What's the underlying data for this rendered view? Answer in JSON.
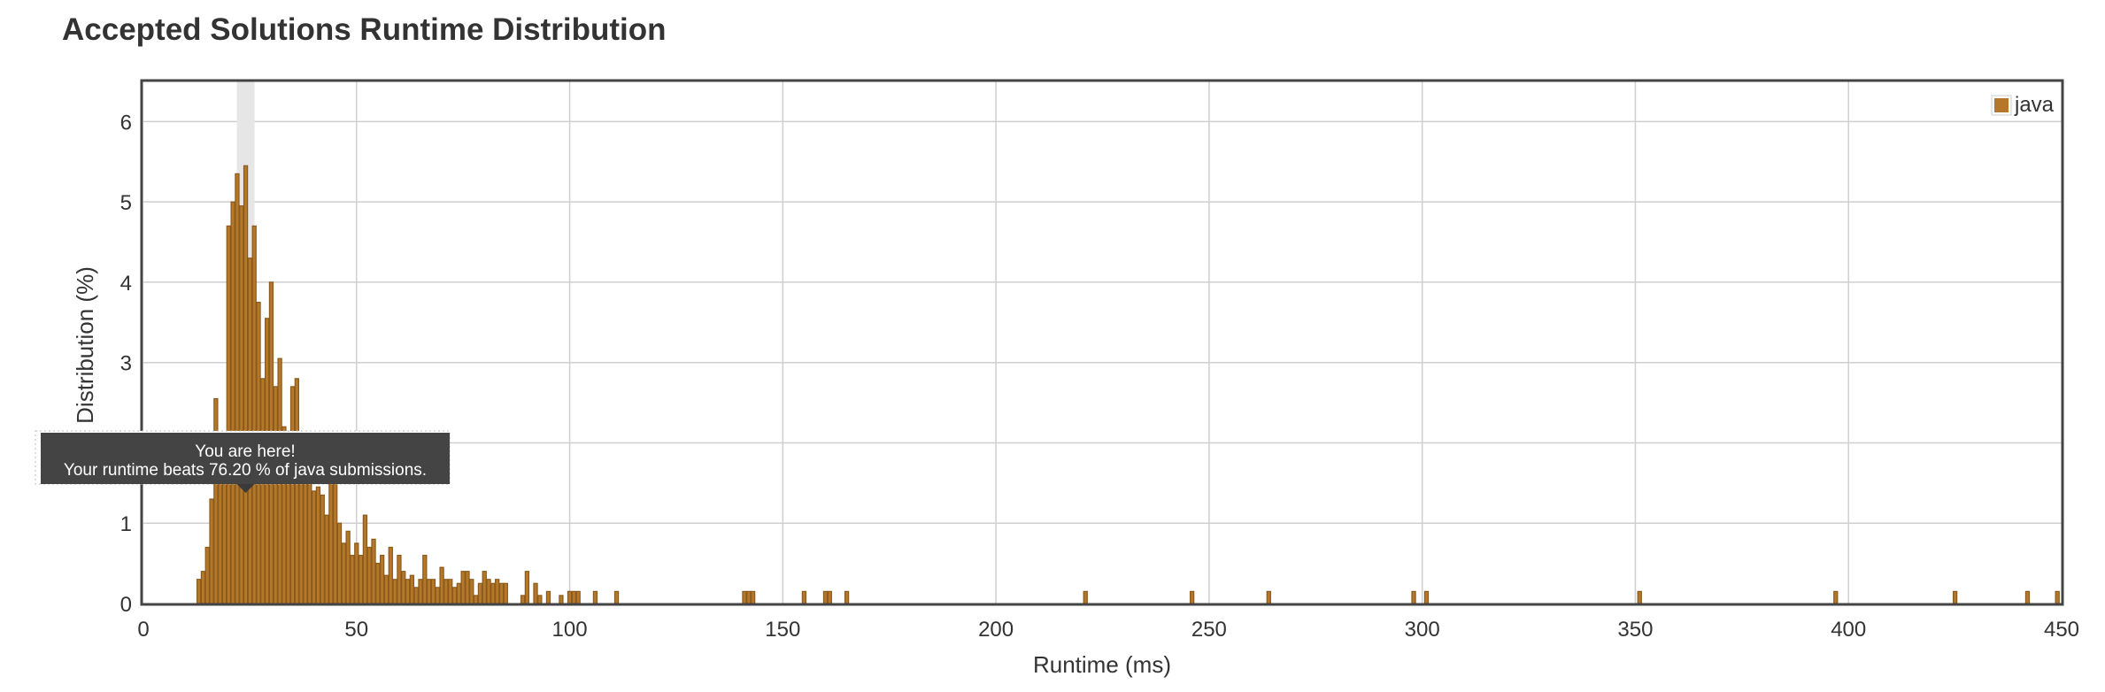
{
  "title": "Accepted Solutions Runtime Distribution",
  "chart_data": {
    "type": "bar",
    "title": "Accepted Solutions Runtime Distribution",
    "xlabel": "Runtime (ms)",
    "ylabel": "Distribution (%)",
    "xlim": [
      0,
      450
    ],
    "ylim": [
      0,
      6.5
    ],
    "xticks": [
      0,
      50,
      100,
      150,
      200,
      250,
      300,
      350,
      400,
      450
    ],
    "yticks": [
      0,
      1,
      2,
      3,
      4,
      5,
      6
    ],
    "grid": true,
    "legend_position": "top-right",
    "series": [
      {
        "name": "java",
        "color": "#b5782a",
        "x": [
          13,
          14,
          15,
          16,
          17,
          18,
          19,
          20,
          21,
          22,
          23,
          24,
          25,
          26,
          27,
          28,
          29,
          30,
          31,
          32,
          33,
          34,
          35,
          36,
          37,
          38,
          39,
          40,
          41,
          42,
          43,
          44,
          45,
          46,
          47,
          48,
          49,
          50,
          51,
          52,
          53,
          54,
          55,
          56,
          57,
          58,
          59,
          60,
          61,
          62,
          63,
          64,
          65,
          66,
          67,
          68,
          69,
          70,
          71,
          72,
          73,
          74,
          75,
          76,
          77,
          78,
          79,
          80,
          81,
          82,
          83,
          84,
          85,
          89,
          90,
          92,
          93,
          95,
          98,
          100,
          101,
          102,
          106,
          111,
          141,
          142,
          143,
          155,
          160,
          161,
          165,
          221,
          246,
          264,
          298,
          301,
          351,
          397,
          425,
          442,
          449
        ],
        "values": [
          0.3,
          0.4,
          0.7,
          1.3,
          2.55,
          1.5,
          1.5,
          4.7,
          5.0,
          5.35,
          4.95,
          5.45,
          4.3,
          4.7,
          3.75,
          2.8,
          3.55,
          4.0,
          2.7,
          3.05,
          2.2,
          1.6,
          2.7,
          2.8,
          1.5,
          1.9,
          1.6,
          1.4,
          1.45,
          1.35,
          1.1,
          1.65,
          1.5,
          1.0,
          0.75,
          0.9,
          0.6,
          0.75,
          0.6,
          1.1,
          0.7,
          0.8,
          0.5,
          0.6,
          0.35,
          0.7,
          0.3,
          0.6,
          0.4,
          0.3,
          0.35,
          0.2,
          0.3,
          0.6,
          0.3,
          0.3,
          0.2,
          0.45,
          0.3,
          0.3,
          0.2,
          0.25,
          0.4,
          0.4,
          0.3,
          0.1,
          0.25,
          0.4,
          0.3,
          0.25,
          0.3,
          0.25,
          0.25,
          0.1,
          0.4,
          0.25,
          0.1,
          0.15,
          0.1,
          0.15,
          0.15,
          0.15,
          0.15,
          0.15,
          0.15,
          0.15,
          0.15,
          0.15,
          0.15,
          0.15,
          0.15,
          0.15,
          0.15,
          0.15,
          0.15,
          0.15,
          0.15,
          0.15,
          0.15,
          0.15,
          0.15
        ]
      }
    ],
    "highlight": {
      "x": 24
    },
    "tooltip": {
      "line1": "You are here!",
      "line2": "Your runtime beats 76.20 % of java submissions."
    }
  }
}
